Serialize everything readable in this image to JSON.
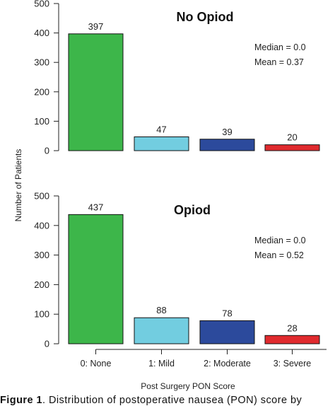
{
  "figure": {
    "ylabel": "Number of Patients",
    "xlabel": "Post Surgery PON Score",
    "caption_label": "Figure 1",
    "caption_text": ". Distribution of postoperative nausea (PON) score by"
  },
  "chart_data": [
    {
      "type": "bar",
      "title": "No Opiod",
      "categories": [
        "0: None",
        "1: Mild",
        "2: Moderate",
        "3: Severe"
      ],
      "values": [
        397,
        47,
        39,
        20
      ],
      "ylim": [
        0,
        500
      ],
      "yticks": [
        0,
        100,
        200,
        300,
        400,
        500
      ],
      "colors": [
        "#3db64a",
        "#72cde0",
        "#2c4a9c",
        "#e02a2e"
      ],
      "annotations": [
        "Median =  0.0",
        "Mean = 0.37"
      ]
    },
    {
      "type": "bar",
      "title": "Opiod",
      "categories": [
        "0: None",
        "1: Mild",
        "2: Moderate",
        "3: Severe"
      ],
      "values": [
        437,
        88,
        78,
        28
      ],
      "ylim": [
        0,
        500
      ],
      "yticks": [
        0,
        100,
        200,
        300,
        400,
        500
      ],
      "colors": [
        "#3db64a",
        "#72cde0",
        "#2c4a9c",
        "#e02a2e"
      ],
      "annotations": [
        "Median = 0.0",
        "Mean = 0.52"
      ]
    }
  ]
}
